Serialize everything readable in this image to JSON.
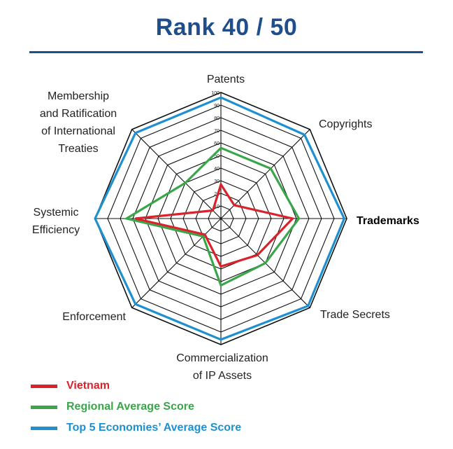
{
  "header": {
    "title": "Rank 40 / 50"
  },
  "chart_data": {
    "type": "radar",
    "axes": [
      [
        "Patents"
      ],
      [
        "Copyrights"
      ],
      [
        "Trademarks"
      ],
      [
        "Trade Secrets"
      ],
      [
        "Commercialization",
        "of IP Assets"
      ],
      [
        "Enforcement"
      ],
      [
        "Systemic",
        "Efficiency"
      ],
      [
        "Membership",
        "and Ratification",
        "of International",
        "Treaties"
      ]
    ],
    "bold_axis": "Trademarks",
    "range": [
      0,
      100
    ],
    "ticks": [
      10,
      20,
      30,
      40,
      50,
      60,
      70,
      80,
      90,
      100
    ],
    "series": [
      {
        "name": "Top 5 Economies' Average Score",
        "color": "#1e90d0",
        "values": [
          96,
          94,
          98,
          98,
          96,
          96,
          100,
          96
        ]
      },
      {
        "name": "Regional Average Score",
        "color": "#3aa64a",
        "values": [
          56,
          56,
          62,
          50,
          53,
          20,
          75,
          40
        ]
      },
      {
        "name": "Vietnam",
        "color": "#d7232b",
        "values": [
          27,
          15,
          57,
          41,
          38,
          18,
          68,
          9
        ]
      }
    ]
  },
  "legend": [
    {
      "label": "Vietnam",
      "color": "#d7232b"
    },
    {
      "label": "Regional Average Score",
      "color": "#3aa64a"
    },
    {
      "label": "Top 5 Economies’ Average Score",
      "color": "#1e90d0"
    }
  ]
}
